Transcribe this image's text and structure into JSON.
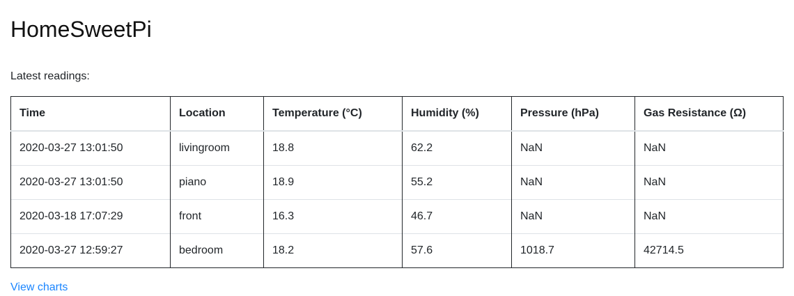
{
  "app": {
    "title": "HomeSweetPi"
  },
  "main": {
    "subtitle": "Latest readings:",
    "table": {
      "headers": [
        "Time",
        "Location",
        "Temperature (°C)",
        "Humidity (%)",
        "Pressure (hPa)",
        "Gas Resistance (Ω)"
      ],
      "rows": [
        [
          "2020-03-27 13:01:50",
          "livingroom",
          "18.8",
          "62.2",
          "NaN",
          "NaN"
        ],
        [
          "2020-03-27 13:01:50",
          "piano",
          "18.9",
          "55.2",
          "NaN",
          "NaN"
        ],
        [
          "2020-03-18 17:07:29",
          "front",
          "16.3",
          "46.7",
          "NaN",
          "NaN"
        ],
        [
          "2020-03-27 12:59:27",
          "bedroom",
          "18.2",
          "57.6",
          "1018.7",
          "42714.5"
        ]
      ]
    },
    "link": {
      "label": "View charts",
      "color": "#1a85ff"
    }
  }
}
